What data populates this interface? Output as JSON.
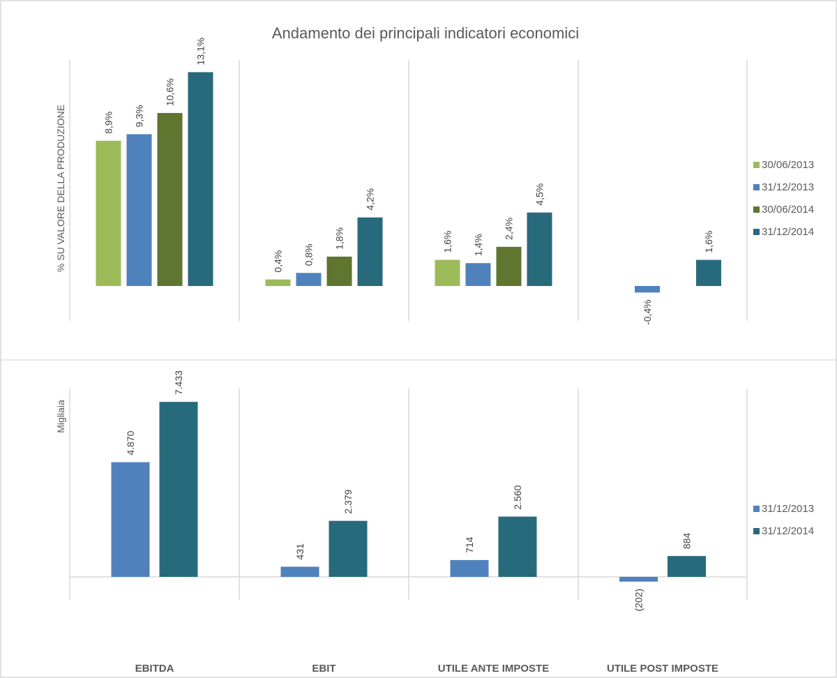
{
  "chart_data": [
    {
      "type": "bar",
      "title": "Andamento dei principali indicatori economici",
      "ylabel": "% SU VALORE DELLA PRODUZIONE",
      "categories": [
        "EBITDA",
        "EBIT",
        "UTILE ANTE IMPOSTE",
        "UTILE POST IMPOSTE"
      ],
      "series": [
        {
          "name": "30/06/2013",
          "color": "#9bbb59",
          "values": [
            8.9,
            0.4,
            1.6,
            null
          ],
          "labels": [
            "8,9%",
            "0,4%",
            "1,6%",
            null
          ]
        },
        {
          "name": "31/12/2013",
          "color": "#4f81bd",
          "values": [
            9.3,
            0.8,
            1.4,
            -0.4
          ],
          "labels": [
            "9,3%",
            "0,8%",
            "1,4%",
            "-0,4%"
          ]
        },
        {
          "name": "30/06/2014",
          "color": "#5f7530",
          "values": [
            10.6,
            1.8,
            2.4,
            null
          ],
          "labels": [
            "10,6%",
            "1,8%",
            "2,4%",
            null
          ]
        },
        {
          "name": "31/12/2014",
          "color": "#276a7c",
          "values": [
            13.1,
            4.2,
            4.5,
            1.6
          ],
          "labels": [
            "13,1%",
            "4,2%",
            "4,5%",
            "1,6%"
          ]
        }
      ],
      "legend": "right"
    },
    {
      "type": "bar",
      "title": "",
      "ylabel": "Migliaia",
      "categories": [
        "EBITDA",
        "EBIT",
        "UTILE ANTE IMPOSTE",
        "UTILE POST IMPOSTE"
      ],
      "series": [
        {
          "name": "31/12/2013",
          "color": "#4f81bd",
          "values": [
            4870,
            431,
            714,
            -202
          ],
          "labels": [
            "4.870",
            "431",
            "714",
            "(202)"
          ]
        },
        {
          "name": "31/12/2014",
          "color": "#276a7c",
          "values": [
            7433,
            2379,
            2560,
            884
          ],
          "labels": [
            "7.433",
            "2.379",
            "2.560",
            "884"
          ]
        }
      ],
      "legend": "right"
    }
  ]
}
